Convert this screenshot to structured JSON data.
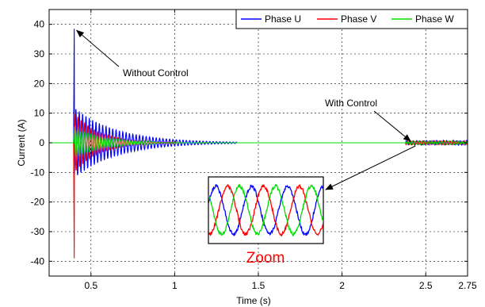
{
  "chart_data": {
    "type": "line",
    "xlabel": "Time (s)",
    "ylabel": "Current (A)",
    "xlim": [
      0.25,
      2.75
    ],
    "ylim": [
      -45,
      45
    ],
    "x_ticks": [
      0.5,
      1,
      1.5,
      2,
      2.5,
      2.75
    ],
    "x_tick_labels": [
      "0.5",
      "1",
      "1.5",
      "2",
      "2.5",
      "2.75"
    ],
    "y_ticks": [
      40,
      30,
      20,
      10,
      0,
      -10,
      -20,
      -30,
      -40
    ],
    "y_tick_labels": [
      "40",
      "30",
      "20",
      "10",
      "0",
      "-10",
      "-20",
      "-30",
      "-40"
    ],
    "grid": true,
    "legend_position": "top-right",
    "series": [
      {
        "name": "Phase U",
        "color": "#0000ff",
        "peak_time": 0.4,
        "peak_value": 38.5,
        "second_peak_value": 11.5,
        "decay_end_amplitude": 0.8,
        "oscillation_end_time": 1.37,
        "controlled_from_time": 2.38,
        "controlled_amplitude": 0.7
      },
      {
        "name": "Phase V",
        "color": "#ff0000",
        "peak_time": 0.4,
        "peak_value": -39,
        "second_peak_value": -9.5,
        "decay_end_amplitude": 0.6,
        "oscillation_end_time": 1.0,
        "controlled_from_time": 2.38,
        "controlled_amplitude": 0.6
      },
      {
        "name": "Phase W",
        "color": "#00dd00",
        "peak_time": 0.4,
        "peak_value": 5.5,
        "second_peak_value": -4.5,
        "decay_end_amplitude": 0.4,
        "oscillation_end_time": 0.9,
        "controlled_from_time": 2.38,
        "controlled_amplitude": 0.5
      }
    ],
    "annotations": [
      {
        "text": "Without Control",
        "target_x": 0.4,
        "target_y": 38.5
      },
      {
        "text": "With Control",
        "target_x": 2.41,
        "target_y": 0
      }
    ],
    "zoom_inset": {
      "label": "Zoom",
      "label_color": "#ff0000",
      "points": 60
    }
  }
}
